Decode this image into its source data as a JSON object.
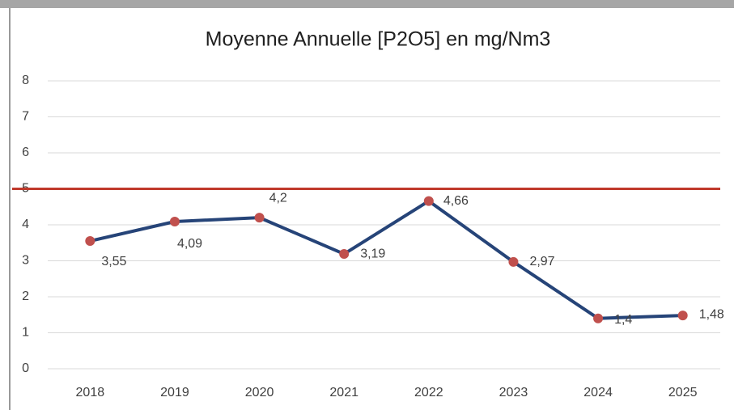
{
  "chart_data": {
    "type": "line",
    "title": "Moyenne Annuelle [P2O5] en  mg/Nm3",
    "categories": [
      "2018",
      "2019",
      "2020",
      "2021",
      "2022",
      "2023",
      "2024",
      "2025"
    ],
    "values": [
      3.55,
      4.09,
      4.2,
      3.19,
      4.66,
      2.97,
      1.4,
      1.48
    ],
    "value_labels": [
      "3,55",
      "4,09",
      "4,2",
      "3,19",
      "4,66",
      "2,97",
      "1,4",
      "1,48"
    ],
    "color": "#264478",
    "marker_color": "#c0504d",
    "reference_line": {
      "value": 5,
      "color": "#c0392b"
    },
    "ylim": [
      0,
      8
    ],
    "yticks": [
      0,
      1,
      2,
      3,
      4,
      5,
      6,
      7,
      8
    ],
    "grid": true
  }
}
